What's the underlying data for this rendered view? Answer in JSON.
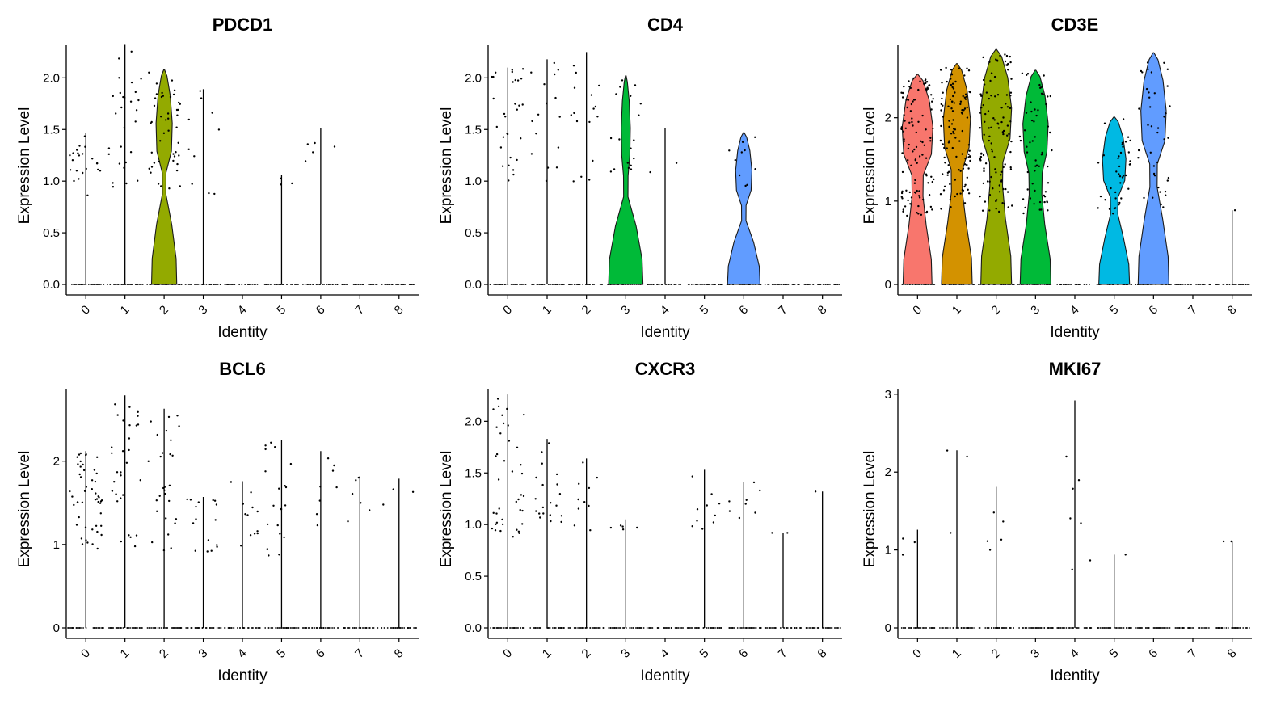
{
  "colors": {
    "identity": [
      "#F8766D",
      "#D39200",
      "#93AA00",
      "#00BA38",
      "#00C19F",
      "#00B9E3",
      "#619CFF",
      "#DB72FB",
      "#FF61C3"
    ],
    "axis": "#000000",
    "point": "#000000"
  },
  "chart_data": [
    {
      "type": "violin",
      "title": "PDCD1",
      "xlabel": "Identity",
      "ylabel": "Expression Level",
      "categories": [
        "0",
        "1",
        "2",
        "3",
        "4",
        "5",
        "6",
        "7",
        "8"
      ],
      "yticks": [
        "0.0",
        "0.5",
        "1.0",
        "1.5",
        "2.0"
      ],
      "ylim": [
        0,
        2.3
      ],
      "max": [
        1.47,
        2.32,
        2.08,
        1.89,
        0,
        1.06,
        1.51,
        0,
        0
      ],
      "violin": [
        null,
        null,
        {
          "base": 0.7,
          "mid": 0.1,
          "top": 0.45
        },
        null,
        null,
        null,
        null,
        null,
        null
      ],
      "nonzero_range": [
        [
          0.85,
          1.45
        ],
        [
          0.8,
          2.3
        ],
        [
          0.9,
          2.08
        ],
        [
          0.85,
          1.88
        ],
        null,
        [
          0.93,
          1.05
        ],
        [
          0.95,
          1.5
        ],
        null,
        null
      ],
      "nonzero_count": [
        22,
        28,
        45,
        10,
        0,
        3,
        5,
        0,
        0
      ]
    },
    {
      "type": "violin",
      "title": "CD4",
      "xlabel": "Identity",
      "ylabel": "Expression Level",
      "categories": [
        "0",
        "1",
        "2",
        "3",
        "4",
        "5",
        "6",
        "7",
        "8"
      ],
      "yticks": [
        "0.0",
        "0.5",
        "1.0",
        "1.5",
        "2.0"
      ],
      "ylim": [
        0,
        2.3
      ],
      "max": [
        2.1,
        2.18,
        2.25,
        2.02,
        1.51,
        0,
        1.47,
        0,
        0
      ],
      "violin": [
        null,
        null,
        null,
        {
          "base": 0.95,
          "mid": 0.12,
          "top": 0.25
        },
        null,
        null,
        {
          "base": 0.9,
          "mid": 0.12,
          "top": 0.45
        },
        null,
        null
      ],
      "nonzero_range": [
        [
          0.9,
          2.1
        ],
        [
          1.0,
          2.18
        ],
        [
          0.98,
          2.25
        ],
        [
          0.9,
          2.0
        ],
        [
          1.08,
          1.5
        ],
        null,
        [
          0.95,
          1.47
        ],
        null,
        null
      ],
      "nonzero_count": [
        30,
        16,
        16,
        18,
        2,
        0,
        10,
        0,
        0
      ]
    },
    {
      "type": "violin",
      "title": "CD3E",
      "xlabel": "Identity",
      "ylabel": "Expression Level",
      "categories": [
        "0",
        "1",
        "2",
        "3",
        "4",
        "5",
        "6",
        "7",
        "8"
      ],
      "yticks": [
        "0",
        "1",
        "2"
      ],
      "ylim": [
        0,
        2.85
      ],
      "max": [
        2.52,
        2.65,
        2.82,
        2.57,
        0,
        2.01,
        2.78,
        0,
        0.89
      ],
      "violin": [
        {
          "base": 0.8,
          "mid": 0.3,
          "top": 0.85
        },
        {
          "base": 0.85,
          "mid": 0.3,
          "top": 0.75
        },
        {
          "base": 0.85,
          "mid": 0.35,
          "top": 0.85
        },
        {
          "base": 0.85,
          "mid": 0.35,
          "top": 0.7
        },
        null,
        {
          "base": 0.85,
          "mid": 0.2,
          "top": 0.65
        },
        {
          "base": 0.85,
          "mid": 0.2,
          "top": 0.7
        },
        null,
        null
      ],
      "nonzero_range": [
        [
          0.8,
          2.5
        ],
        [
          0.9,
          2.6
        ],
        [
          0.85,
          2.8
        ],
        [
          0.85,
          2.55
        ],
        null,
        [
          0.85,
          2.0
        ],
        [
          0.9,
          2.75
        ],
        null,
        [
          0.89,
          0.89
        ]
      ],
      "nonzero_count": [
        110,
        110,
        110,
        60,
        0,
        40,
        40,
        0,
        1
      ]
    },
    {
      "type": "violin",
      "title": "BCL6",
      "xlabel": "Identity",
      "ylabel": "Expression Level",
      "categories": [
        "0",
        "1",
        "2",
        "3",
        "4",
        "5",
        "6",
        "7",
        "8"
      ],
      "yticks": [
        "0",
        "1",
        "2"
      ],
      "ylim": [
        0,
        2.85
      ],
      "max": [
        2.12,
        2.79,
        2.63,
        1.57,
        1.76,
        2.25,
        2.12,
        1.82,
        1.79
      ],
      "violin": [
        null,
        null,
        null,
        null,
        null,
        null,
        null,
        null,
        null
      ],
      "nonzero_range": [
        [
          0.92,
          2.1
        ],
        [
          0.92,
          2.79
        ],
        [
          0.9,
          2.62
        ],
        [
          0.9,
          1.56
        ],
        [
          0.92,
          1.75
        ],
        [
          0.85,
          2.25
        ],
        [
          0.95,
          2.1
        ],
        [
          1.15,
          1.82
        ],
        [
          1.15,
          1.79
        ]
      ],
      "nonzero_count": [
        50,
        30,
        28,
        16,
        12,
        20,
        8,
        6,
        3
      ]
    },
    {
      "type": "violin",
      "title": "CXCR3",
      "xlabel": "Identity",
      "ylabel": "Expression Level",
      "categories": [
        "0",
        "1",
        "2",
        "3",
        "4",
        "5",
        "6",
        "7",
        "8"
      ],
      "yticks": [
        "0.0",
        "0.5",
        "1.0",
        "1.5",
        "2.0"
      ],
      "ylim": [
        0,
        2.3
      ],
      "max": [
        2.26,
        1.83,
        1.64,
        1.05,
        0,
        1.53,
        1.41,
        0.92,
        1.32
      ],
      "violin": [
        null,
        null,
        null,
        null,
        null,
        null,
        null,
        null,
        null
      ],
      "nonzero_range": [
        [
          0.88,
          2.25
        ],
        [
          0.98,
          1.83
        ],
        [
          0.92,
          1.64
        ],
        [
          0.93,
          1.05
        ],
        null,
        [
          0.9,
          1.53
        ],
        [
          1.0,
          1.41
        ],
        [
          0.92,
          0.92
        ],
        [
          1.32,
          1.32
        ]
      ],
      "nonzero_count": [
        40,
        20,
        10,
        5,
        0,
        10,
        8,
        2,
        1
      ]
    },
    {
      "type": "violin",
      "title": "MKI67",
      "xlabel": "Identity",
      "ylabel": "Expression Level",
      "categories": [
        "0",
        "1",
        "2",
        "3",
        "4",
        "5",
        "6",
        "7",
        "8"
      ],
      "yticks": [
        "0",
        "1",
        "2",
        "3"
      ],
      "ylim": [
        0,
        3.05
      ],
      "max": [
        1.26,
        2.28,
        1.81,
        0,
        2.92,
        0.94,
        0,
        0,
        1.11
      ],
      "violin": [
        null,
        null,
        null,
        null,
        null,
        null,
        null,
        null,
        null
      ],
      "nonzero_range": [
        [
          0.92,
          1.25
        ],
        [
          1.14,
          2.28
        ],
        [
          0.98,
          1.8
        ],
        null,
        [
          0.66,
          2.9
        ],
        [
          0.94,
          0.94
        ],
        null,
        null,
        [
          1.11,
          1.11
        ]
      ],
      "nonzero_count": [
        3,
        3,
        5,
        0,
        7,
        1,
        0,
        0,
        2
      ]
    }
  ]
}
